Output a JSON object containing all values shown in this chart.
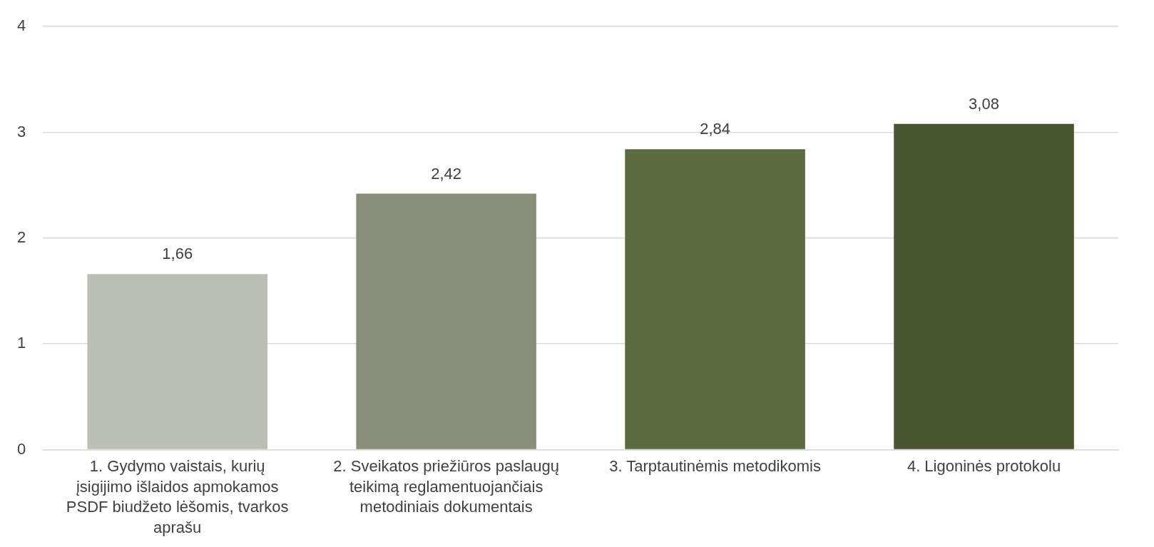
{
  "chart_data": {
    "type": "bar",
    "categories": [
      "1. Gydymo vaistais, kurių įsigijimo išlaidos apmokamos PSDF biudžeto lėšomis, tvarkos aprašu",
      "2. Sveikatos priežiūros paslaugų teikimą reglamentuojančiais metodiniais dokumentais",
      "3. Tarptautinėmis metodikomis",
      "4. Ligoninės protokolu"
    ],
    "values": [
      1.66,
      2.42,
      2.84,
      3.08
    ],
    "colors": [
      "#b9c0b3",
      "#878f77",
      "#5a6b40",
      "#48552f"
    ],
    "value_labels": [
      "1,66",
      "2,42",
      "2,84",
      "3,08"
    ],
    "ylim": [
      0,
      4
    ],
    "yticks": [
      0,
      1,
      2,
      3,
      4
    ],
    "grid": "y",
    "legend": false
  }
}
